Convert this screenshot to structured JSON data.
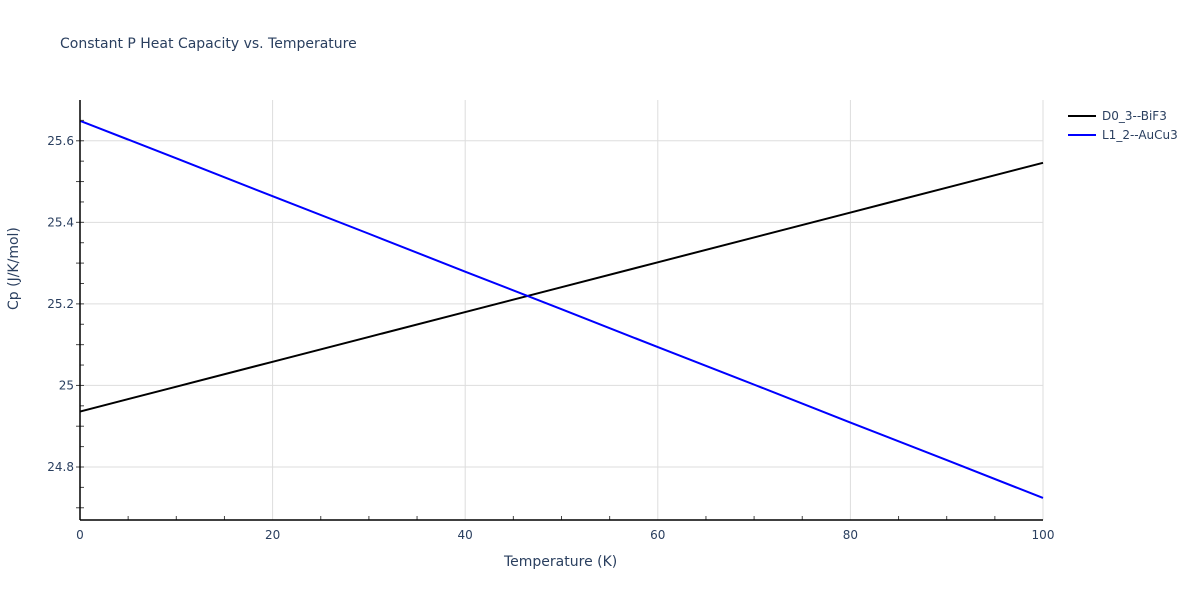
{
  "title": "Constant P Heat Capacity vs. Temperature",
  "legend": [
    {
      "label": "D0_3--BiF3",
      "color": "#000000"
    },
    {
      "label": "L1_2--AuCu3",
      "color": "#0000ff"
    }
  ],
  "axes": {
    "xlabel": "Temperature (K)",
    "ylabel": "Cp (J/K/mol)",
    "xticks": [
      "0",
      "20",
      "40",
      "60",
      "80",
      "100"
    ],
    "yticks": [
      "24.8",
      "25",
      "25.2",
      "25.4",
      "25.6"
    ]
  },
  "chart_data": {
    "type": "line",
    "title": "Constant P Heat Capacity vs. Temperature",
    "xlabel": "Temperature (K)",
    "ylabel": "Cp (J/K/mol)",
    "xlim": [
      0,
      100
    ],
    "ylim": [
      24.67,
      25.7
    ],
    "grid": true,
    "legend_position": "top-right outside",
    "x": [
      0,
      10,
      20,
      30,
      40,
      50,
      60,
      70,
      80,
      90,
      100
    ],
    "series": [
      {
        "name": "D0_3--BiF3",
        "color": "#000000",
        "values": [
          24.936,
          24.997,
          25.058,
          25.119,
          25.18,
          25.241,
          25.302,
          25.363,
          25.424,
          25.485,
          25.546
        ]
      },
      {
        "name": "L1_2--AuCu3",
        "color": "#0000ff",
        "values": [
          25.649,
          25.557,
          25.464,
          25.372,
          25.279,
          25.187,
          25.094,
          25.002,
          24.909,
          24.817,
          24.724
        ]
      }
    ]
  }
}
